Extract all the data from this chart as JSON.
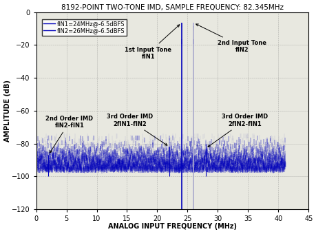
{
  "title": "8192-POINT TWO-TONE IMD, SAMPLE FREQUENCY: 82.345MHz",
  "xlabel": "ANALOG INPUT FREQUENCY (MHz)",
  "ylabel": "AMPLITUDE (dB)",
  "xlim": [
    0,
    45
  ],
  "ylim": [
    -120,
    0
  ],
  "xticks": [
    0,
    5,
    10,
    15,
    20,
    25,
    30,
    35,
    40,
    45
  ],
  "yticks": [
    0,
    -20,
    -40,
    -60,
    -80,
    -100,
    -120
  ],
  "fs": 82.345,
  "N": 8192,
  "fin1": 24.0,
  "fin2": 26.0,
  "amp1": -6.5,
  "amp2": -6.5,
  "noise_floor": -95,
  "noise_std": 7,
  "imd2_freq": 2.0,
  "imd2_amp": -87,
  "imd3a_freq": 22.0,
  "imd3a_amp": -82,
  "imd3b_freq": 28.0,
  "imd3b_amp": -83,
  "legend_line1": "fIN1=24MHz@-6.5dBFS",
  "legend_line2": "fIN2=26MHz@-6.5dBFS",
  "bg_color": "#e8e8e0",
  "line_color_blue": "#0000bb",
  "line_color_light": "#aaaacc",
  "title_fontsize": 7.5,
  "axis_label_fontsize": 7,
  "tick_fontsize": 7,
  "annotation_fontsize": 6,
  "legend_fontsize": 6
}
